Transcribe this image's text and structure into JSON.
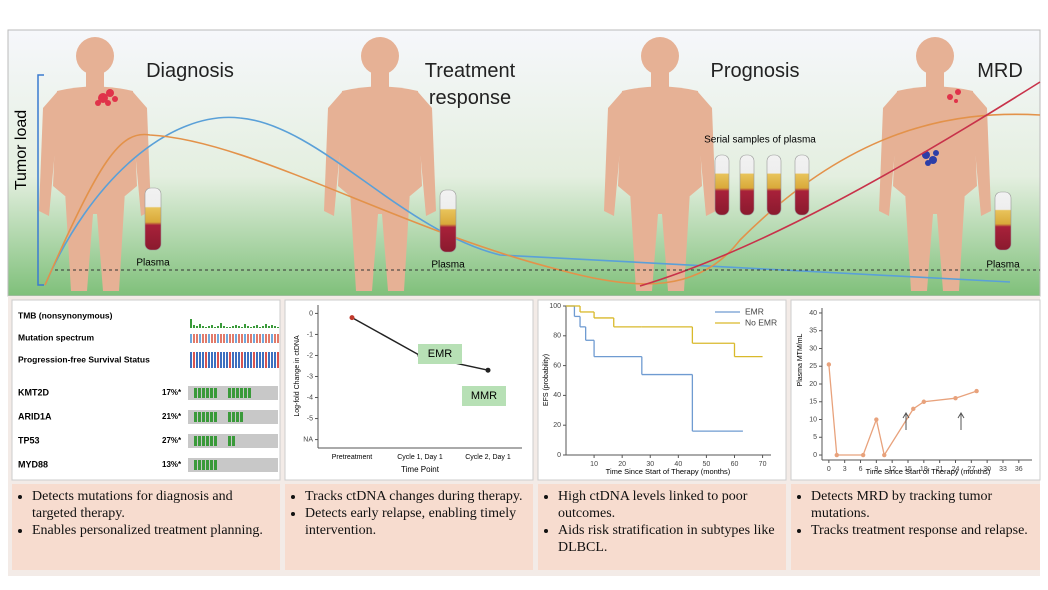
{
  "header": {
    "stages": [
      "Diagnosis",
      "Treatment response",
      "Prognosis",
      "MRD"
    ],
    "axis_label": "Tumor load",
    "tube_label": "Plasma",
    "serial_label": "Serial samples of plasma"
  },
  "oncoplot": {
    "tracks": [
      "TMB (nonsynonymous)",
      "Mutation spectrum",
      "Progression-free Survival Status"
    ],
    "genes": [
      {
        "name": "KMT2D",
        "freq": "17%*"
      },
      {
        "name": "ARID1A",
        "freq": "21%*"
      },
      {
        "name": "TP53",
        "freq": "27%*"
      },
      {
        "name": "MYD88",
        "freq": "13%*"
      }
    ]
  },
  "ctdna_chart": {
    "type": "line",
    "y_label": "Log-fold Change in ctDNA",
    "x_label": "Time Point",
    "categories": [
      "Pretreatment",
      "Cycle 1, Day 1",
      "Cycle 2, Day 1"
    ],
    "values": [
      -0.2,
      -2.0,
      -2.7
    ],
    "color": "#222222",
    "ylim": [
      -6.4,
      0.4
    ],
    "yticks": [
      0,
      -1,
      -2,
      -3,
      -4,
      -5,
      {
        "value": -6,
        "label": "NA"
      }
    ],
    "annotations": [
      "EMR",
      "MMR"
    ]
  },
  "efs_chart": {
    "type": "step",
    "y_label": "EFS (probability)",
    "x_label": "Time Since Start of Therapy (months)",
    "xlim": [
      0,
      73
    ],
    "xticks": [
      10,
      20,
      30,
      40,
      50,
      60,
      70
    ],
    "ylim": [
      0,
      100
    ],
    "yticks": [
      0,
      20,
      40,
      60,
      80,
      100
    ],
    "legend": "upper right",
    "series": [
      {
        "name": "EMR",
        "color": "#6f9bd1",
        "x": [
          0,
          3,
          5,
          7,
          10,
          27,
          45,
          63
        ],
        "values": [
          100,
          93,
          86,
          77,
          66,
          54,
          16,
          16
        ]
      },
      {
        "name": "No EMR",
        "color": "#d9b92b",
        "x": [
          0,
          5,
          10,
          17,
          27,
          45,
          60,
          70
        ],
        "values": [
          100,
          96,
          92,
          86,
          86,
          75,
          66,
          66
        ]
      }
    ]
  },
  "mrd_chart": {
    "type": "line",
    "y_label": "Plasma MTM/mL",
    "x_label": "Time Since Start of Therapy (months)",
    "xlim": [
      -1.3,
      38.5
    ],
    "xticks": [
      0,
      3,
      6,
      9,
      12,
      15,
      18,
      21,
      24,
      27,
      30,
      33,
      36
    ],
    "ylim": [
      -1.4,
      41.4
    ],
    "yticks": [
      0,
      5,
      10,
      15,
      20,
      25,
      30,
      35,
      40
    ],
    "x": [
      0,
      1.5,
      6.5,
      9,
      10.5,
      16,
      18,
      24,
      28
    ],
    "values": [
      25.5,
      0,
      0,
      10,
      0,
      13,
      15,
      16,
      18
    ],
    "color": "#e8a27c"
  },
  "notes": [
    [
      "Detects mutations for diagnosis and targeted therapy.",
      "Enables personalized treatment planning."
    ],
    [
      "Tracks ctDNA changes during therapy.",
      "Detects early relapse, enabling timely intervention."
    ],
    [
      "High ctDNA levels linked to poor outcomes.",
      "Aids risk stratification in subtypes like DLBCL."
    ],
    [
      "Detects MRD by tracking tumor mutations.",
      "Tracks treatment response and relapse."
    ]
  ]
}
